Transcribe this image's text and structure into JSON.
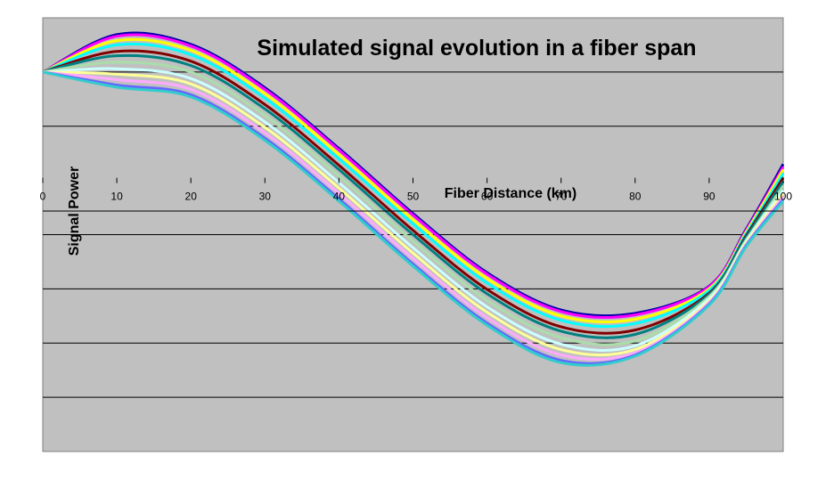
{
  "chart_data": {
    "type": "line",
    "title": "Simulated signal evolution in a fiber span",
    "xlabel": "Fiber Distance (km)",
    "ylabel": "Signal Power",
    "xlim": [
      0,
      100
    ],
    "ylim": [
      -5,
      3
    ],
    "x_ticks": [
      "0",
      "10",
      "20",
      "30",
      "40",
      "50",
      "60",
      "70",
      "80",
      "90",
      "100"
    ],
    "grid": true,
    "legend": "none",
    "colors": {
      "plot_background": "#c0c0c0",
      "gridline": "#000000",
      "axis": "#000000"
    },
    "series": [
      {
        "color": "#0000aa",
        "points": [
          [
            0,
            2
          ],
          [
            10,
            2.69
          ],
          [
            20,
            2.51
          ],
          [
            30,
            1.71
          ],
          [
            40,
            0.59
          ],
          [
            50,
            -0.61
          ],
          [
            60,
            -1.7
          ],
          [
            70,
            -2.39
          ],
          [
            80,
            -2.45
          ],
          [
            90,
            -1.95
          ],
          [
            95,
            -0.9
          ],
          [
            100,
            0.3
          ]
        ]
      },
      {
        "color": "#ff00ff",
        "points": [
          [
            0,
            2
          ],
          [
            10,
            2.66
          ],
          [
            20,
            2.48
          ],
          [
            30,
            1.68
          ],
          [
            40,
            0.56
          ],
          [
            50,
            -0.64
          ],
          [
            60,
            -1.73
          ],
          [
            70,
            -2.42
          ],
          [
            80,
            -2.48
          ],
          [
            90,
            -1.96
          ],
          [
            95,
            -0.92
          ],
          [
            100,
            0.25
          ]
        ]
      },
      {
        "color": "#ffff00",
        "points": [
          [
            0,
            2
          ],
          [
            10,
            2.58
          ],
          [
            20,
            2.4
          ],
          [
            30,
            1.6
          ],
          [
            40,
            0.48
          ],
          [
            50,
            -0.72
          ],
          [
            60,
            -1.81
          ],
          [
            70,
            -2.5
          ],
          [
            80,
            -2.56
          ],
          [
            90,
            -2.0
          ],
          [
            95,
            -0.95
          ],
          [
            100,
            0.2
          ]
        ]
      },
      {
        "color": "#00ffff",
        "points": [
          [
            0,
            2
          ],
          [
            10,
            2.5
          ],
          [
            20,
            2.32
          ],
          [
            30,
            1.52
          ],
          [
            40,
            0.4
          ],
          [
            50,
            -0.8
          ],
          [
            60,
            -1.89
          ],
          [
            70,
            -2.58
          ],
          [
            80,
            -2.64
          ],
          [
            90,
            -2.03
          ],
          [
            95,
            -0.98
          ],
          [
            100,
            0.13
          ]
        ]
      },
      {
        "color": "#800000",
        "points": [
          [
            0,
            2
          ],
          [
            10,
            2.38
          ],
          [
            20,
            2.2
          ],
          [
            30,
            1.4
          ],
          [
            40,
            0.28
          ],
          [
            50,
            -0.92
          ],
          [
            60,
            -2.01
          ],
          [
            70,
            -2.7
          ],
          [
            80,
            -2.76
          ],
          [
            90,
            -2.08
          ],
          [
            95,
            -1.02
          ],
          [
            100,
            0.05
          ]
        ]
      },
      {
        "color": "#008080",
        "points": [
          [
            0,
            2
          ],
          [
            10,
            2.3
          ],
          [
            20,
            2.12
          ],
          [
            30,
            1.32
          ],
          [
            40,
            0.2
          ],
          [
            50,
            -1.0
          ],
          [
            60,
            -2.09
          ],
          [
            70,
            -2.78
          ],
          [
            80,
            -2.84
          ],
          [
            90,
            -2.1
          ],
          [
            95,
            -1.05
          ],
          [
            100,
            -0.02
          ]
        ]
      },
      {
        "color": "#aaddaa",
        "points": [
          [
            0,
            2
          ],
          [
            10,
            2.18
          ],
          [
            20,
            2.0
          ],
          [
            30,
            1.2
          ],
          [
            40,
            0.08
          ],
          [
            50,
            -1.12
          ],
          [
            60,
            -2.21
          ],
          [
            70,
            -2.9
          ],
          [
            80,
            -2.96
          ],
          [
            90,
            -2.14
          ],
          [
            95,
            -1.1
          ],
          [
            100,
            -0.1
          ]
        ]
      },
      {
        "color": "#ccffff",
        "points": [
          [
            0,
            2
          ],
          [
            10,
            2.06
          ],
          [
            20,
            1.88
          ],
          [
            30,
            1.08
          ],
          [
            40,
            -0.04
          ],
          [
            50,
            -1.24
          ],
          [
            60,
            -2.33
          ],
          [
            70,
            -3.02
          ],
          [
            80,
            -3.05
          ],
          [
            90,
            -2.18
          ],
          [
            95,
            -1.12
          ],
          [
            100,
            -0.18
          ]
        ]
      },
      {
        "color": "#ffff99",
        "points": [
          [
            0,
            2
          ],
          [
            10,
            1.96
          ],
          [
            20,
            1.78
          ],
          [
            30,
            0.98
          ],
          [
            40,
            -0.14
          ],
          [
            50,
            -1.34
          ],
          [
            60,
            -2.43
          ],
          [
            70,
            -3.12
          ],
          [
            80,
            -3.12
          ],
          [
            90,
            -2.22
          ],
          [
            95,
            -1.15
          ],
          [
            100,
            -0.24
          ]
        ]
      },
      {
        "color": "#ffaaff",
        "points": [
          [
            0,
            2
          ],
          [
            10,
            1.86
          ],
          [
            20,
            1.68
          ],
          [
            30,
            0.88
          ],
          [
            40,
            -0.24
          ],
          [
            50,
            -1.44
          ],
          [
            60,
            -2.53
          ],
          [
            70,
            -3.22
          ],
          [
            80,
            -3.18
          ],
          [
            90,
            -2.25
          ],
          [
            95,
            -1.18
          ],
          [
            100,
            -0.3
          ]
        ]
      },
      {
        "color": "#6666ff",
        "points": [
          [
            0,
            2
          ],
          [
            10,
            1.76
          ],
          [
            20,
            1.58
          ],
          [
            30,
            0.78
          ],
          [
            40,
            -0.34
          ],
          [
            50,
            -1.54
          ],
          [
            60,
            -2.63
          ],
          [
            70,
            -3.32
          ],
          [
            80,
            -3.22
          ],
          [
            90,
            -2.28
          ],
          [
            95,
            -1.2
          ],
          [
            100,
            -0.35
          ]
        ]
      },
      {
        "color": "#33cccc",
        "points": [
          [
            0,
            2
          ],
          [
            10,
            1.72
          ],
          [
            20,
            1.54
          ],
          [
            30,
            0.74
          ],
          [
            40,
            -0.38
          ],
          [
            50,
            -1.58
          ],
          [
            60,
            -2.67
          ],
          [
            70,
            -3.36
          ],
          [
            80,
            -3.24
          ],
          [
            90,
            -2.3
          ],
          [
            95,
            -1.22
          ],
          [
            100,
            -0.38
          ]
        ]
      }
    ]
  }
}
